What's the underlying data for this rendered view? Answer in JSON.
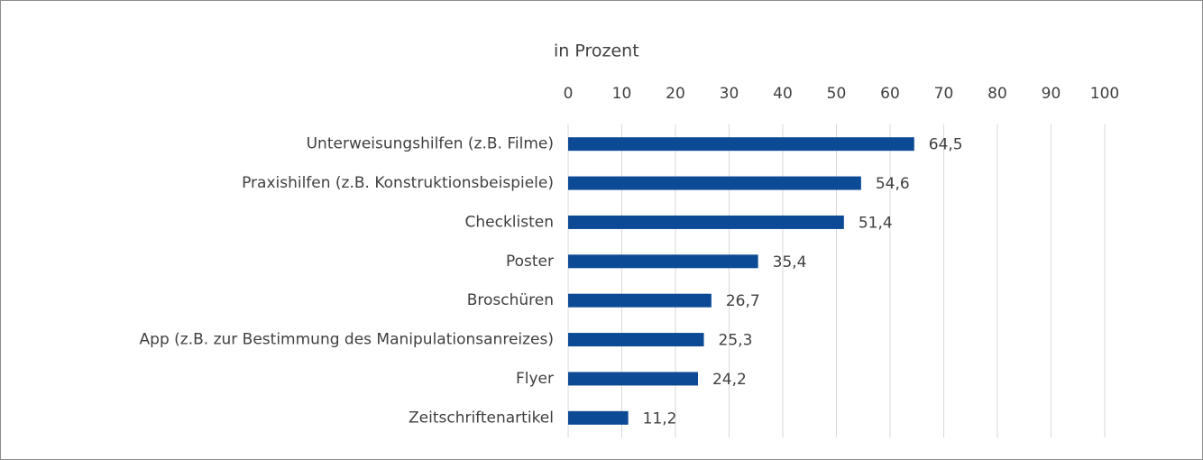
{
  "chart_data": {
    "type": "hbar",
    "xlabel": "in Prozent",
    "categories": [
      "Unterweisungshilfen (z.B. Filme)",
      "Praxishilfen (z.B. Konstruktionsbeispiele)",
      "Checklisten",
      "Poster",
      "Broschüren",
      "App (z.B. zur Bestimmung des Manipulationsanreizes)",
      "Flyer",
      "Zeitschriftenartikel"
    ],
    "values": [
      64.5,
      54.6,
      51.4,
      35.4,
      26.7,
      25.3,
      24.2,
      11.2
    ],
    "value_labels": [
      "64,5",
      "54,6",
      "51,4",
      "35,4",
      "26,7",
      "25,3",
      "24,2",
      "11,2"
    ],
    "color": "#0d4a96",
    "xlim": [
      0,
      100
    ],
    "xticks": [
      0,
      10,
      20,
      30,
      40,
      50,
      60,
      70,
      80,
      90,
      100
    ],
    "grid": true
  }
}
